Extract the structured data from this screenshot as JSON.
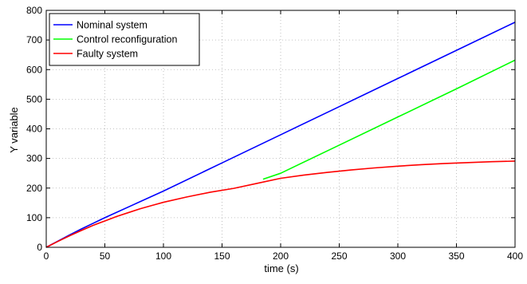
{
  "chart_data": {
    "type": "line",
    "xlabel": "time (s)",
    "ylabel": "Y variable",
    "xlim": [
      0,
      400
    ],
    "ylim": [
      0,
      800
    ],
    "xticks": [
      0,
      50,
      100,
      150,
      200,
      250,
      300,
      350,
      400
    ],
    "yticks": [
      0,
      100,
      200,
      300,
      400,
      500,
      600,
      700,
      800
    ],
    "grid": true,
    "legend_position": "top-left",
    "series": [
      {
        "name": "Nominal system",
        "color": "#0000ff",
        "x": [
          0,
          10,
          20,
          30,
          40,
          50,
          75,
          100,
          150,
          200,
          250,
          300,
          350,
          400
        ],
        "y": [
          0,
          21,
          42,
          62,
          81,
          100,
          145,
          190,
          285,
          380,
          475,
          570,
          665,
          760
        ]
      },
      {
        "name": "Control reconfiguration",
        "color": "#00ff00",
        "x": [
          185,
          200,
          250,
          300,
          350,
          400
        ],
        "y": [
          230,
          250,
          345,
          440,
          535,
          632
        ]
      },
      {
        "name": "Faulty system",
        "color": "#ff0000",
        "x": [
          0,
          10,
          20,
          30,
          40,
          50,
          60,
          70,
          80,
          90,
          100,
          120,
          140,
          160,
          180,
          200,
          220,
          240,
          260,
          280,
          300,
          320,
          340,
          360,
          380,
          400
        ],
        "y": [
          0,
          20,
          39,
          57,
          74,
          89,
          104,
          117,
          130,
          141,
          152,
          170,
          186,
          199,
          216,
          233,
          244,
          253,
          261,
          268,
          274,
          279,
          283,
          286,
          289,
          291
        ]
      }
    ]
  }
}
